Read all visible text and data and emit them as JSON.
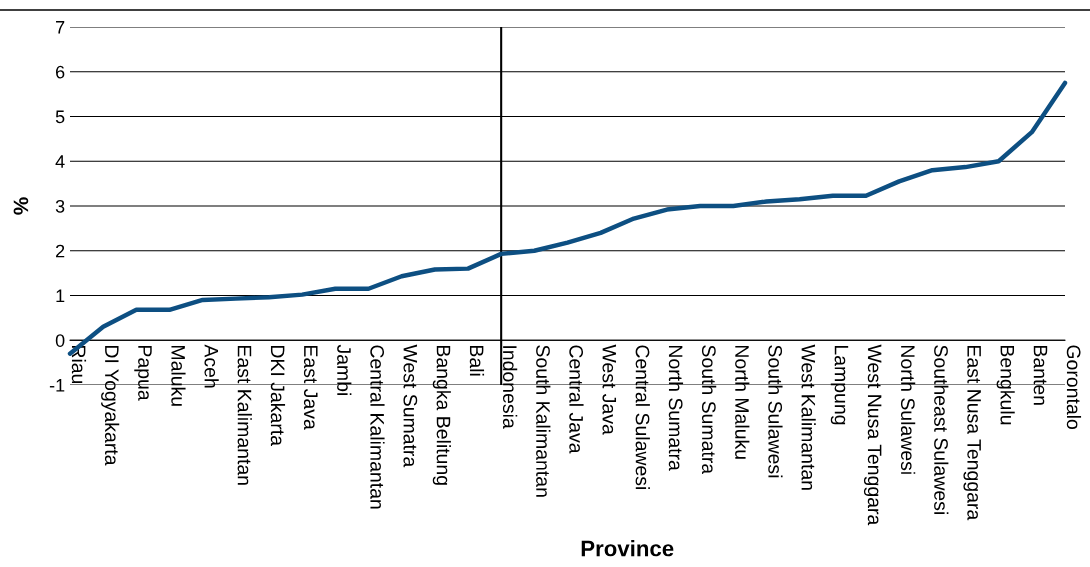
{
  "chart_data": {
    "type": "line",
    "xlabel": "Province",
    "ylabel": "%",
    "categories": [
      "Riau",
      "DI Yogyakarta",
      "Papua",
      "Maluku",
      "Aceh",
      "East Kalimantan",
      "DKI Jakarta",
      "East Java",
      "Jambi",
      "Central Kalimantan",
      "West Sumatra",
      "Bangka Belitung",
      "Bali",
      "Indonesia",
      "South Kalimantan",
      "Central Java",
      "West Java",
      "Central Sulawesi",
      "North Sumatra",
      "South Sumatra",
      "North Maluku",
      "South Sulawesi",
      "West Kalimantan",
      "Lampung",
      "West Nusa Tenggara",
      "North Sulawesi",
      "Southeast Sulawesi",
      "East Nusa Tenggara",
      "Bengkulu",
      "Banten",
      "Gorontalo"
    ],
    "series": [
      {
        "color": "#0d4f82",
        "values": [
          -0.3,
          0.3,
          0.68,
          0.68,
          0.9,
          0.93,
          0.96,
          1.02,
          1.15,
          1.15,
          1.43,
          1.58,
          1.6,
          1.93,
          2.0,
          2.18,
          2.4,
          2.72,
          2.92,
          3.0,
          3.0,
          3.1,
          3.15,
          3.23,
          3.23,
          3.55,
          3.8,
          3.87,
          4.0,
          4.65,
          5.75
        ]
      }
    ],
    "ylim": [
      -1,
      7
    ],
    "yticks": [
      -1,
      0,
      1,
      2,
      3,
      4,
      5,
      6,
      7
    ],
    "grid": "y",
    "marker": "none",
    "line_style": "solid",
    "ref_lines": [
      {
        "axis": "x",
        "value": "Indonesia",
        "color": "#000000"
      }
    ]
  }
}
